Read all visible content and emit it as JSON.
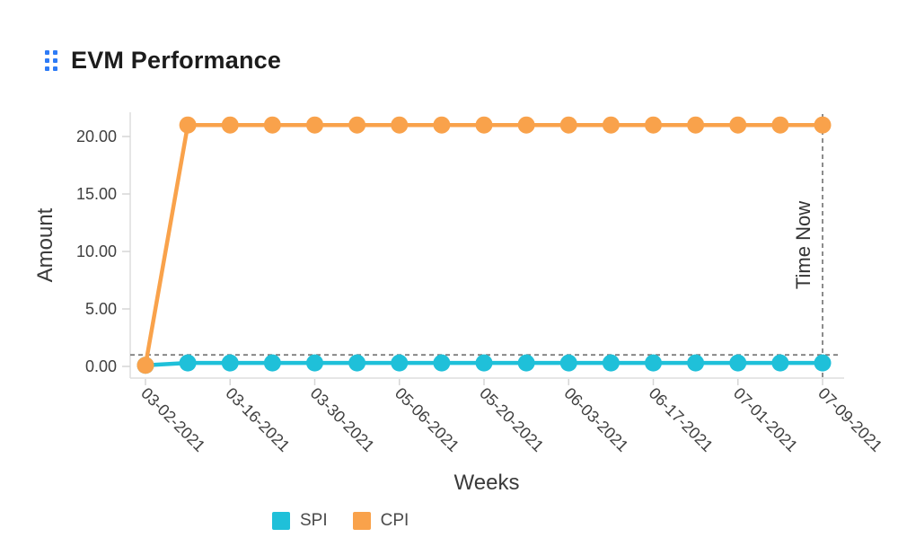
{
  "header": {
    "title": "EVM Performance",
    "accent_color": "#2e7bf6"
  },
  "chart_data": {
    "type": "line",
    "title": "EVM Performance",
    "xlabel": "Weeks",
    "ylabel": "Amount",
    "x_tick_labels": [
      "03-02-2021",
      "03-16-2021",
      "03-30-2021",
      "05-06-2021",
      "05-20-2021",
      "06-03-2021",
      "06-17-2021",
      "07-01-2021",
      "07-09-2021"
    ],
    "labeled_point_indices": [
      0,
      2,
      4,
      6,
      8,
      10,
      12,
      14,
      16
    ],
    "num_points": 17,
    "y_ticks": [
      {
        "value": 0,
        "label": "0.00"
      },
      {
        "value": 5,
        "label": "5.00"
      },
      {
        "value": 10,
        "label": "10.00"
      },
      {
        "value": 15,
        "label": "15.00"
      },
      {
        "value": 20,
        "label": "20.00"
      }
    ],
    "ylim": [
      0,
      22
    ],
    "grid": false,
    "legend_position": "bottom",
    "series": [
      {
        "name": "SPI",
        "color": "#1fc0d9",
        "values": [
          0.1,
          0.3,
          0.3,
          0.3,
          0.3,
          0.3,
          0.3,
          0.3,
          0.3,
          0.3,
          0.3,
          0.3,
          0.3,
          0.3,
          0.3,
          0.3,
          0.3
        ]
      },
      {
        "name": "CPI",
        "color": "#f9a24b",
        "values": [
          0.1,
          21,
          21,
          21,
          21,
          21,
          21,
          21,
          21,
          21,
          21,
          21,
          21,
          21,
          21,
          21,
          21
        ]
      }
    ],
    "threshold_line": {
      "value": 1,
      "style": "dashed",
      "color": "#7f7f7f"
    },
    "time_now_marker": {
      "label": "Time Now",
      "point_index": 16,
      "style": "dashed",
      "color": "#7f7f7f"
    },
    "axis_color": "#dddddd",
    "tick_label_color": "#404040",
    "axis_title_color": "#3a3a3a"
  },
  "legend": {
    "items": [
      {
        "label": "SPI",
        "color": "#1fc0d9"
      },
      {
        "label": "CPI",
        "color": "#f9a24b"
      }
    ]
  }
}
